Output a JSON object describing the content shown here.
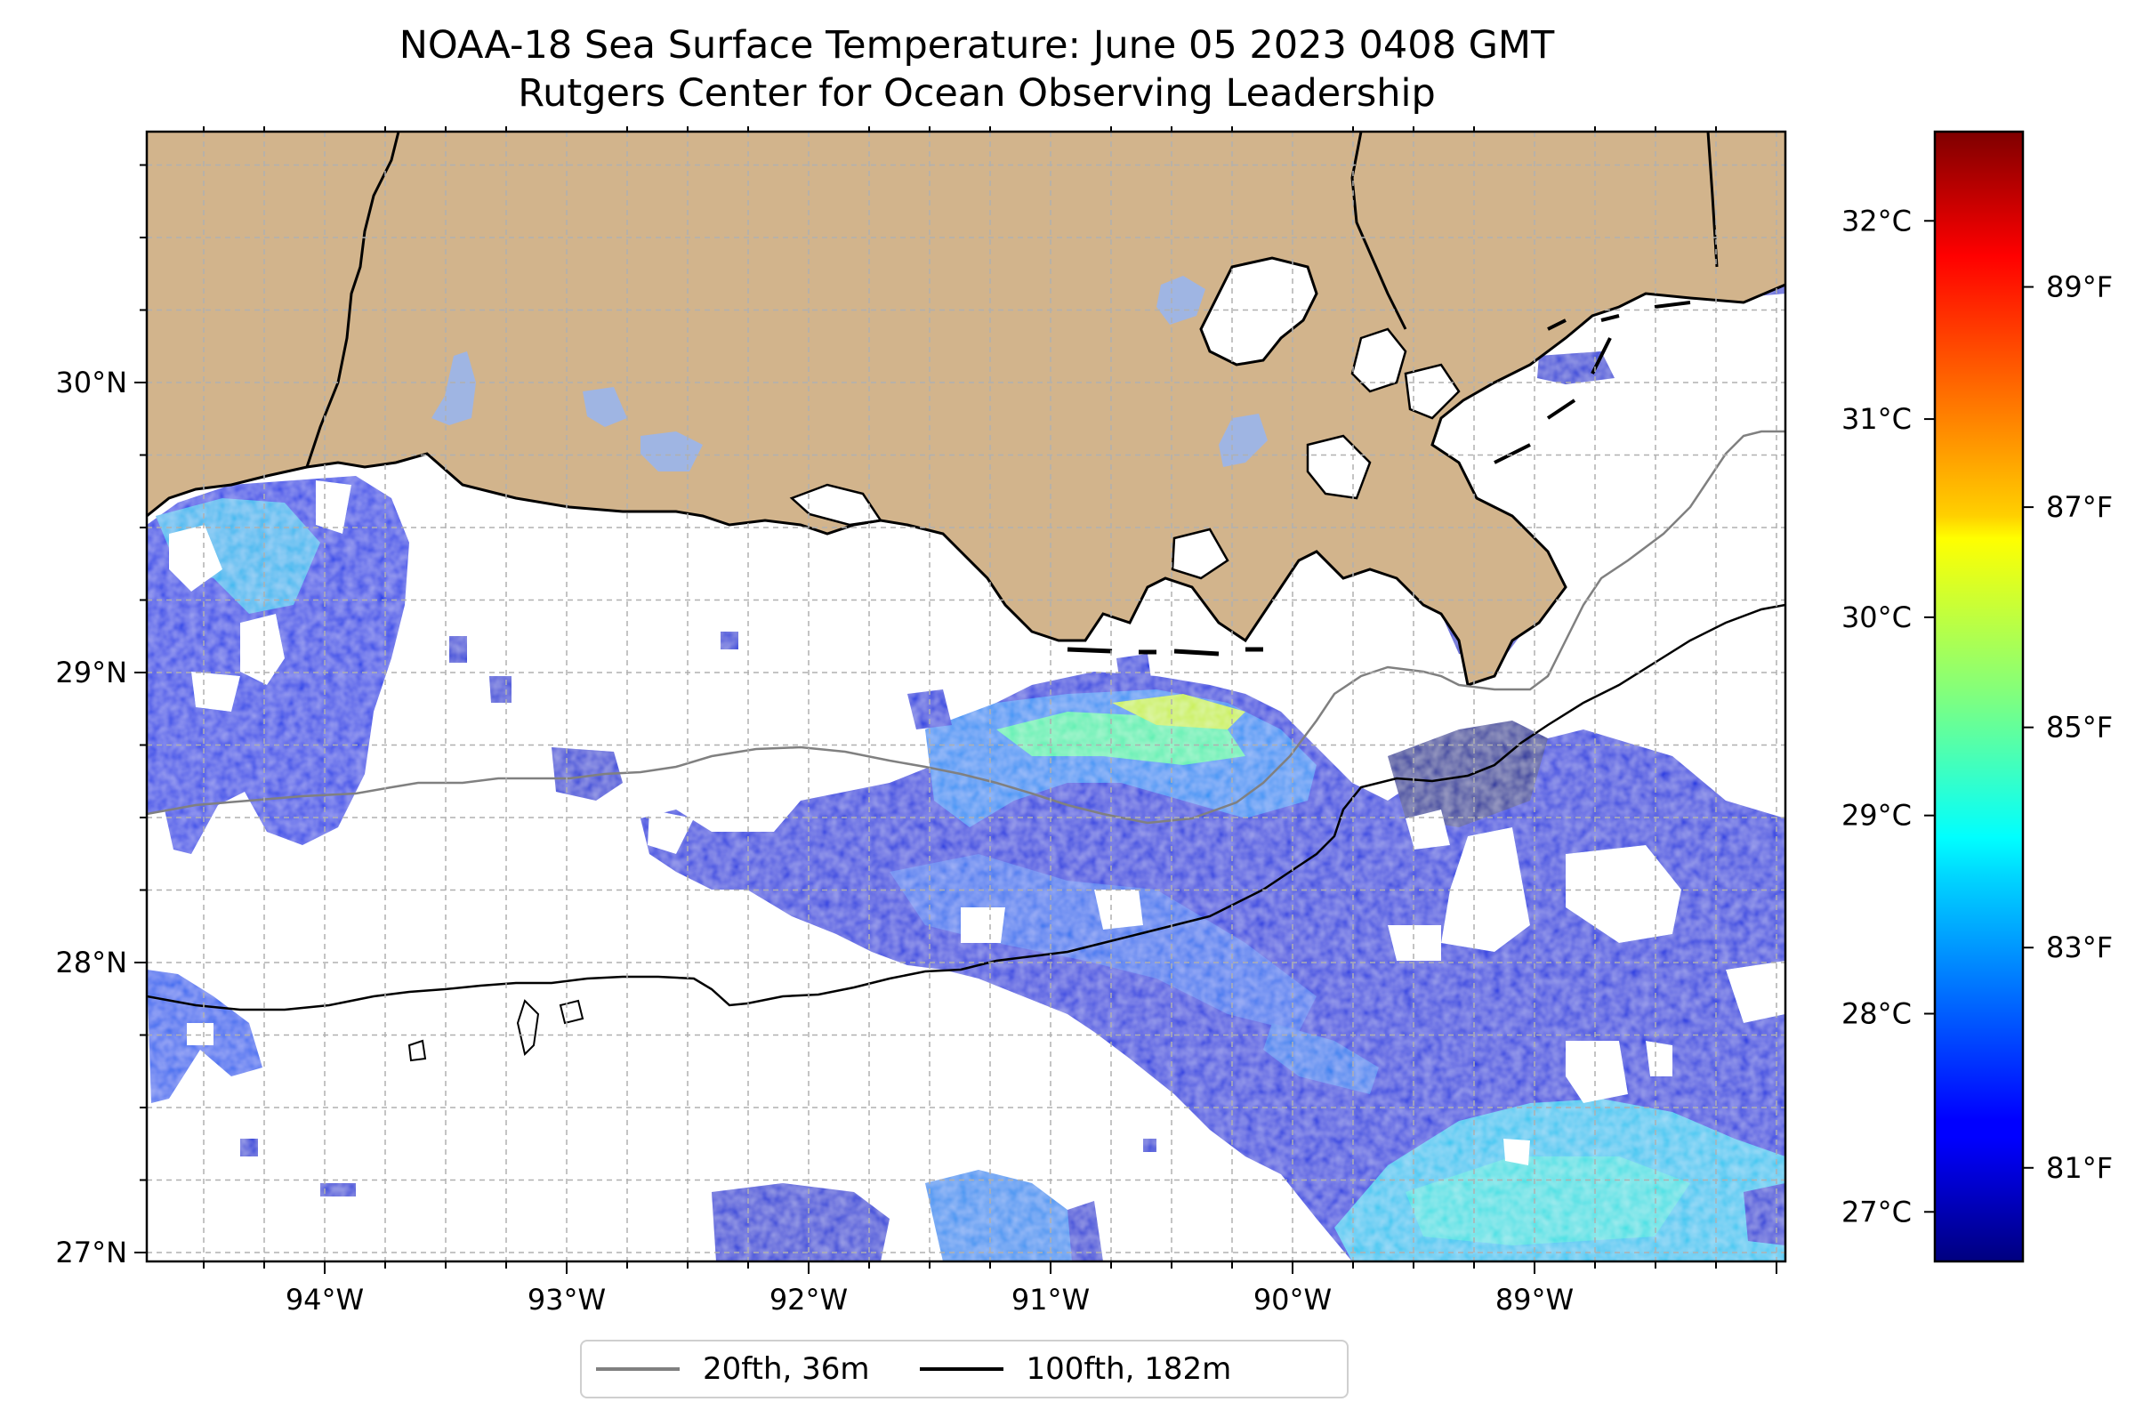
{
  "title": {
    "line1": "NOAA-18 Sea Surface Temperature: June 05 2023 0408 GMT",
    "line2": "Rutgers Center for Ocean Observing Leadership"
  },
  "map": {
    "lon_ticks": [
      "94°W",
      "93°W",
      "92°W",
      "91°W",
      "90°W",
      "89°W"
    ],
    "lat_ticks": [
      "30°N",
      "29°N",
      "28°N",
      "27°N"
    ],
    "gridlines": true,
    "colors": {
      "land": "#d2b48c",
      "lakes": "#9fb5e3",
      "no_data": "#ffffff",
      "coastline": "#000000"
    }
  },
  "legend": {
    "items": [
      {
        "label": "20fth, 36m",
        "color": "#808080"
      },
      {
        "label": "100fth, 182m",
        "color": "#000000"
      }
    ],
    "placement": "bottom-center"
  },
  "colorbar": {
    "colormap": "jet",
    "celsius_ticks": [
      "32°C",
      "31°C",
      "30°C",
      "29°C",
      "28°C",
      "27°C"
    ],
    "fahrenheit_ticks": [
      "89°F",
      "87°F",
      "85°F",
      "83°F",
      "81°F"
    ],
    "celsius_values": [
      32,
      31,
      30,
      29,
      28,
      27
    ],
    "fahrenheit_values": [
      89,
      87,
      85,
      83,
      81
    ],
    "range_celsius": [
      26.75,
      32.45
    ]
  }
}
